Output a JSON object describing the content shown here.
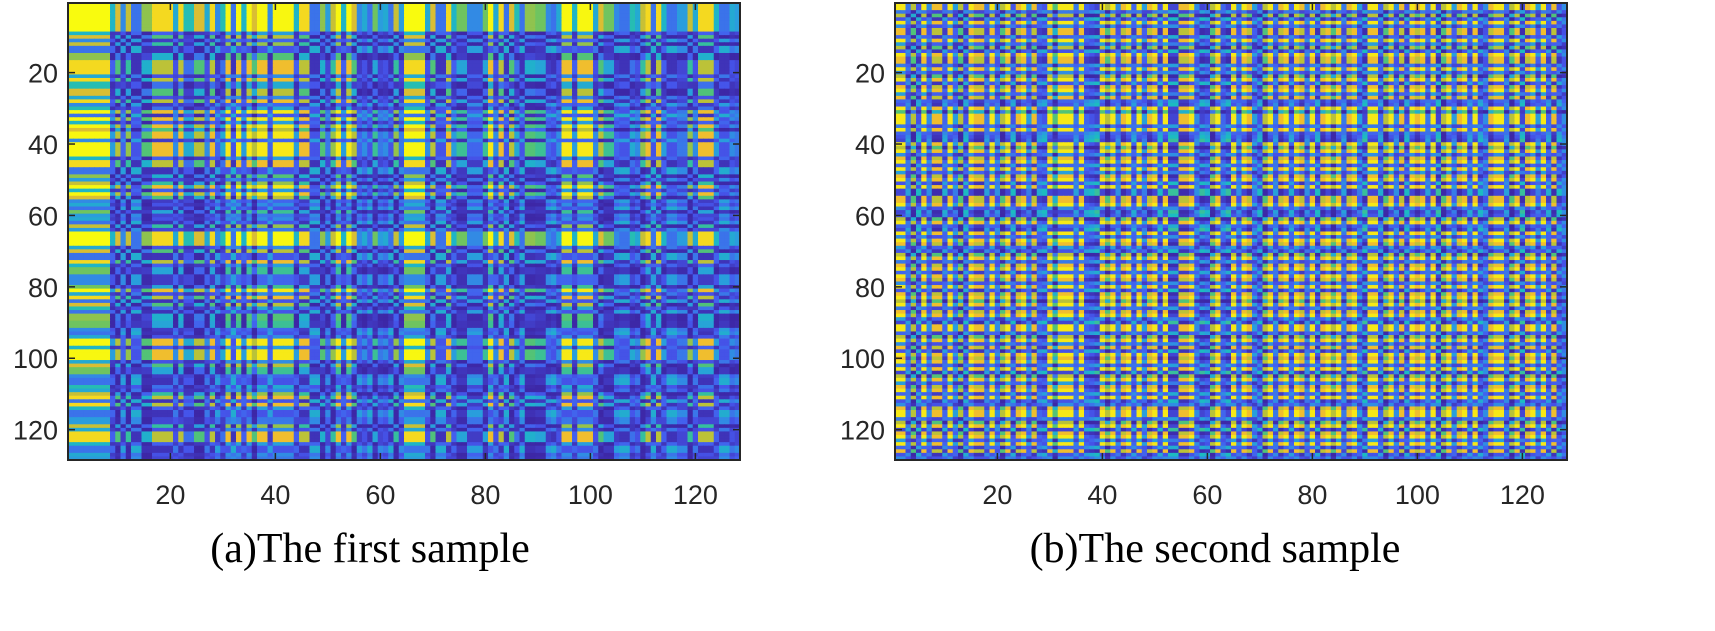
{
  "chart_data": [
    {
      "type": "heatmap",
      "title": "",
      "caption": "(a)The first sample",
      "encoding": "gramian angular summation field: cell(i,j) = cos(acos(x_i)+acos(x_j))",
      "colormap": "parula",
      "clim": [
        -1,
        1
      ],
      "xlim": [
        0.5,
        128.5
      ],
      "ylim": [
        0.5,
        128.5
      ],
      "xticks": [
        "20",
        "40",
        "60",
        "80",
        "100",
        "120"
      ],
      "yticks": [
        "20",
        "40",
        "60",
        "80",
        "100",
        "120"
      ],
      "x": [
        -1,
        -1,
        -1,
        -1,
        -1,
        -1,
        -1,
        -1,
        0.2,
        -0.6,
        0.5,
        -0.5,
        0.6,
        0.6,
        -0.3,
        -0.3,
        -0.85,
        -0.85,
        -0.85,
        -0.85,
        0.3,
        -0.85,
        0.1,
        0.1,
        -0.6,
        -0.6,
        0.3,
        -0.85,
        0.5,
        0.1,
        -0.98,
        0.6,
        -0.98,
        0.2,
        -0.98,
        -0.6,
        -0.98,
        -0.98,
        0.5,
        -0.98,
        -0.98,
        -0.98,
        -0.98,
        0.2,
        -0.85,
        -0.85,
        0.6,
        0.6,
        -0.3,
        0.4,
        -0.5,
        -0.98,
        0.2,
        -0.98,
        -0.6,
        0.5,
        0.3,
        0.6,
        -0.2,
        0.4,
        0.3,
        0.6,
        -0.5,
        0.4,
        -1,
        -1,
        -1,
        -1,
        0.3,
        -0.6,
        0.6,
        0.6,
        -0.85,
        0.2,
        -0.2,
        -0.2,
        0.5,
        0.5,
        0.5,
        -0.2,
        -0.98,
        0.3,
        -0.85,
        0.6,
        -0.6,
        0.1,
        0.6,
        -0.3,
        -0.3,
        -0.2,
        -0.2,
        0.5,
        0.6,
        0.3,
        -0.98,
        -0.98,
        0.2,
        -0.98,
        -0.98,
        -0.98,
        0.3,
        -0.6,
        -0.2,
        -0.2,
        0.5,
        0.6,
        0.6,
        0.1,
        0.3,
        -0.5,
        -0.85,
        0.6,
        -0.85,
        0.2,
        0.6,
        0.6,
        0.4,
        0.4,
        -0.5,
        0.3,
        -0.85,
        -0.85,
        -0.85,
        0.2,
        0.6,
        0.6,
        0.3,
        0.4
      ]
    },
    {
      "type": "heatmap",
      "title": "",
      "caption": "(b)The second sample",
      "encoding": "gramian angular summation field: cell(i,j) = cos(acos(x_i)+acos(x_j))",
      "colormap": "parula",
      "clim": [
        -1,
        1
      ],
      "xlim": [
        0.5,
        128.5
      ],
      "ylim": [
        0.5,
        128.5
      ],
      "xticks": [
        "20",
        "40",
        "60",
        "80",
        "100",
        "120"
      ],
      "yticks": [
        "20",
        "40",
        "60",
        "80",
        "100",
        "120"
      ],
      "x": [
        -0.98,
        -0.98,
        0.4,
        -0.6,
        0.6,
        -0.98,
        0.3,
        -0.85,
        -0.85,
        0.5,
        -0.98,
        0.2,
        -0.6,
        0.6,
        -0.98,
        -0.85,
        -0.85,
        0.4,
        -0.98,
        0.3,
        -0.6,
        -0.98,
        0.6,
        -0.85,
        -0.98,
        0.2,
        -0.85,
        0.5,
        0.6,
        -0.98,
        -0.3,
        -0.98,
        -0.98,
        -0.98,
        0.4,
        -0.98,
        0.5,
        0.6,
        0.7,
        -0.98,
        -0.6,
        -0.98,
        0.3,
        -0.85,
        -0.98,
        0.5,
        -0.98,
        0.2,
        -0.85,
        -0.98,
        0.6,
        -0.98,
        0.7,
        0.7,
        -0.85,
        -0.85,
        -0.98,
        0.3,
        0.7,
        0.6,
        -0.6,
        -0.98,
        0.5,
        0.7,
        -0.98,
        0.3,
        -0.98,
        -0.85,
        0.2,
        0.6,
        -0.6,
        -0.98,
        0.4,
        -0.85,
        -0.98,
        0.5,
        -0.98,
        -0.85,
        0.3,
        -0.98,
        0.6,
        -0.85,
        -0.98,
        -0.6,
        -0.98,
        0.4,
        -0.85,
        -0.98,
        0.2,
        0.7,
        -0.98,
        -0.98,
        0.5,
        -0.6,
        -0.98,
        0.3,
        -0.85,
        0.6,
        -0.98,
        -0.85,
        -0.98,
        0.4,
        -0.98,
        0.7,
        -0.6,
        -0.98,
        0.2,
        -0.85,
        -0.98,
        0.5,
        -0.98,
        0.6,
        0.3,
        -0.85,
        -0.98,
        -0.98,
        0.4,
        -0.6,
        -0.98,
        0.7,
        -0.85,
        -0.98,
        0.2,
        -0.98,
        0.5,
        -0.85,
        0.6,
        0.3
      ]
    }
  ],
  "colors": {
    "parula": [
      "#3d27a6",
      "#4659f0",
      "#2b9ae0",
      "#1cbcc0",
      "#5cc46a",
      "#b9c238",
      "#f0bb30",
      "#f9fb0e"
    ],
    "axis": "#262626"
  }
}
